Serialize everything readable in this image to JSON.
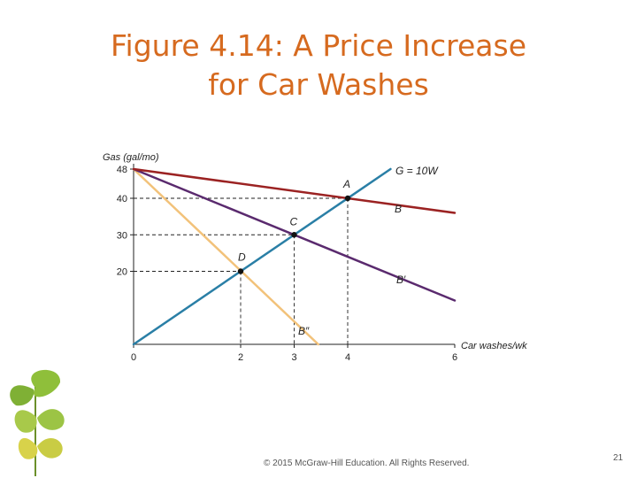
{
  "slide": {
    "title_line1": "Figure 4.14: A Price Increase",
    "title_line2": "for Car Washes",
    "footer": "© 2015 McGraw-Hill Education. All Rights Reserved.",
    "page_number": "21"
  },
  "colors": {
    "title": "#d66a1f",
    "budget_B": "#9b2222",
    "budget_B_prime": "#5a2a6e",
    "budget_B_double_prime": "#f2c27a",
    "line_G": "#2a7fa6",
    "guides": "#222222"
  },
  "chart_data": {
    "type": "line",
    "ylabel": "Gas (gal/mo)",
    "xlabel": "Car washes/wk",
    "xlim": [
      0,
      6
    ],
    "ylim": [
      0,
      48
    ],
    "x_ticks": [
      {
        "value": 0,
        "label": "0"
      },
      {
        "value": 2,
        "label": "2"
      },
      {
        "value": 3,
        "label": "3"
      },
      {
        "value": 4,
        "label": "4"
      },
      {
        "value": 6,
        "label": "6"
      }
    ],
    "y_ticks": [
      {
        "value": 20,
        "label": "20"
      },
      {
        "value": 30,
        "label": "30"
      },
      {
        "value": 40,
        "label": "40"
      },
      {
        "value": 48,
        "label": "48"
      }
    ],
    "series": [
      {
        "key": "B",
        "name": "B",
        "color": "#9b2222",
        "points": [
          [
            0,
            48
          ],
          [
            6,
            36
          ]
        ]
      },
      {
        "key": "B_prime",
        "name": "B′",
        "color": "#5a2a6e",
        "points": [
          [
            0,
            48
          ],
          [
            6,
            12
          ]
        ]
      },
      {
        "key": "B_double_prime",
        "name": "B″",
        "color": "#f2c27a",
        "points": [
          [
            0,
            48
          ],
          [
            3.45,
            0
          ]
        ]
      },
      {
        "key": "G",
        "name": "G = 10W",
        "color": "#2a7fa6",
        "points": [
          [
            0,
            0
          ],
          [
            4.8,
            48
          ]
        ]
      }
    ],
    "points": [
      {
        "label": "A",
        "x": 4,
        "y": 40
      },
      {
        "label": "C",
        "x": 3,
        "y": 30
      },
      {
        "label": "D",
        "x": 2,
        "y": 20
      }
    ],
    "grid": false
  }
}
